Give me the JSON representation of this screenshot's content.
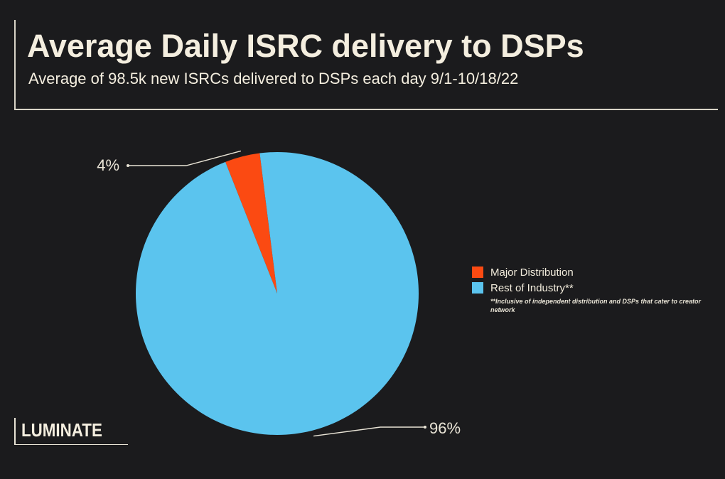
{
  "header": {
    "title": "Average Daily ISRC delivery to DSPs",
    "subtitle": "Average of 98.5k new ISRCs delivered to DSPs each day 9/1-10/18/22"
  },
  "chart_data": {
    "type": "pie",
    "title": "Average Daily ISRC delivery to DSPs",
    "subtitle": "Average of 98.5k new ISRCs delivered to DSPs each day 9/1-10/18/22",
    "slices": [
      {
        "name": "Major Distribution",
        "value": 4,
        "label": "4%",
        "color": "#fb4a12"
      },
      {
        "name": "Rest of Industry**",
        "value": 96,
        "label": "96%",
        "color": "#5bc4ee"
      }
    ],
    "legend_position": "right",
    "legend_note": "**Inclusive of independent distribution and DSPs that cater to creator network"
  },
  "logo": {
    "text": "LUMINATE"
  },
  "colors": {
    "background": "#1b1b1d",
    "text": "#f2ecdc"
  }
}
